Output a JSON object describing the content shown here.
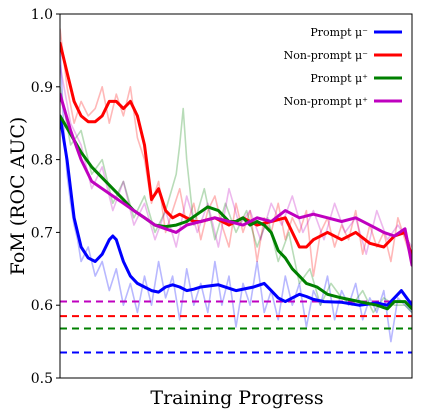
{
  "chart_data": {
    "type": "line",
    "xlabel": "Training Progress",
    "ylabel": "FoM (ROC AUC)",
    "ylim": [
      0.5,
      1.0
    ],
    "yticks": [
      "0.5",
      "0.6",
      "0.7",
      "0.8",
      "0.9",
      "1.0"
    ],
    "xlim": [
      0,
      100
    ],
    "grid": false,
    "legend_position": "top-right",
    "series": [
      {
        "name": "Prompt μ⁻",
        "color": "#0000ff",
        "baseline": 0.535,
        "smooth": {
          "x": [
            0,
            2,
            4,
            6,
            8,
            10,
            12,
            14,
            15,
            16,
            17,
            18,
            20,
            22,
            24,
            26,
            28,
            30,
            32,
            34,
            36,
            38,
            40,
            45,
            50,
            55,
            58,
            60,
            62,
            64,
            66,
            68,
            70,
            72,
            75,
            80,
            85,
            90,
            93,
            95,
            97,
            100
          ],
          "y": [
            0.86,
            0.8,
            0.72,
            0.68,
            0.665,
            0.66,
            0.67,
            0.69,
            0.695,
            0.69,
            0.675,
            0.66,
            0.64,
            0.63,
            0.625,
            0.62,
            0.618,
            0.625,
            0.628,
            0.625,
            0.62,
            0.622,
            0.625,
            0.628,
            0.62,
            0.625,
            0.63,
            0.62,
            0.61,
            0.605,
            0.61,
            0.615,
            0.612,
            0.608,
            0.605,
            0.604,
            0.6,
            0.603,
            0.6,
            0.61,
            0.62,
            0.6
          ]
        },
        "raw": {
          "x": [
            0,
            1,
            2,
            3,
            4,
            5,
            6,
            8,
            10,
            12,
            14,
            16,
            18,
            20,
            22,
            24,
            26,
            28,
            30,
            32,
            34,
            36,
            38,
            40,
            42,
            44,
            46,
            48,
            50,
            52,
            54,
            56,
            58,
            60,
            62,
            64,
            66,
            68,
            70,
            72,
            74,
            76,
            78,
            80,
            82,
            84,
            86,
            88,
            90,
            92,
            94,
            96,
            98,
            100
          ],
          "y": [
            0.96,
            0.85,
            0.78,
            0.74,
            0.71,
            0.69,
            0.66,
            0.68,
            0.64,
            0.66,
            0.62,
            0.65,
            0.6,
            0.63,
            0.59,
            0.64,
            0.6,
            0.66,
            0.61,
            0.64,
            0.58,
            0.65,
            0.6,
            0.63,
            0.59,
            0.66,
            0.6,
            0.64,
            0.57,
            0.63,
            0.6,
            0.66,
            0.59,
            0.62,
            0.58,
            0.64,
            0.6,
            0.63,
            0.57,
            0.62,
            0.6,
            0.64,
            0.58,
            0.62,
            0.6,
            0.63,
            0.58,
            0.61,
            0.59,
            0.62,
            0.55,
            0.61,
            0.6,
            0.59
          ]
        }
      },
      {
        "name": "Non-prompt μ⁻",
        "color": "#ff0000",
        "baseline": 0.585,
        "smooth": {
          "x": [
            0,
            2,
            4,
            6,
            8,
            10,
            12,
            14,
            16,
            18,
            20,
            22,
            24,
            26,
            28,
            30,
            32,
            34,
            36,
            38,
            40,
            44,
            48,
            52,
            56,
            60,
            64,
            68,
            70,
            72,
            76,
            80,
            84,
            88,
            92,
            95,
            98,
            100
          ],
          "y": [
            0.96,
            0.92,
            0.88,
            0.86,
            0.852,
            0.852,
            0.86,
            0.88,
            0.88,
            0.87,
            0.88,
            0.86,
            0.82,
            0.745,
            0.76,
            0.73,
            0.72,
            0.725,
            0.72,
            0.715,
            0.715,
            0.72,
            0.71,
            0.72,
            0.71,
            0.715,
            0.72,
            0.68,
            0.68,
            0.69,
            0.7,
            0.69,
            0.7,
            0.685,
            0.68,
            0.695,
            0.7,
            0.665
          ]
        },
        "raw": {
          "x": [
            0,
            2,
            4,
            6,
            8,
            10,
            12,
            14,
            16,
            18,
            20,
            22,
            24,
            26,
            28,
            30,
            32,
            34,
            36,
            38,
            40,
            42,
            44,
            46,
            48,
            50,
            52,
            54,
            56,
            58,
            60,
            62,
            64,
            66,
            68,
            70,
            72,
            74,
            76,
            78,
            80,
            82,
            84,
            86,
            88,
            90,
            92,
            94,
            96,
            98,
            100
          ],
          "y": [
            0.98,
            0.9,
            0.85,
            0.88,
            0.86,
            0.87,
            0.9,
            0.85,
            0.89,
            0.86,
            0.9,
            0.83,
            0.8,
            0.74,
            0.77,
            0.7,
            0.73,
            0.76,
            0.71,
            0.74,
            0.69,
            0.73,
            0.75,
            0.71,
            0.68,
            0.74,
            0.7,
            0.73,
            0.66,
            0.72,
            0.7,
            0.74,
            0.69,
            0.72,
            0.7,
            0.73,
            0.64,
            0.7,
            0.72,
            0.68,
            0.71,
            0.69,
            0.73,
            0.67,
            0.71,
            0.68,
            0.7,
            0.66,
            0.72,
            0.69,
            0.66
          ]
        }
      },
      {
        "name": "Prompt μ⁺",
        "color": "#008000",
        "baseline": 0.568,
        "smooth": {
          "x": [
            0,
            3,
            6,
            9,
            12,
            15,
            18,
            21,
            24,
            27,
            30,
            33,
            36,
            39,
            42,
            45,
            48,
            50,
            52,
            54,
            56,
            58,
            60,
            62,
            64,
            66,
            68,
            70,
            73,
            76,
            80,
            85,
            90,
            93,
            95,
            98,
            100
          ],
          "y": [
            0.86,
            0.835,
            0.81,
            0.79,
            0.775,
            0.76,
            0.745,
            0.73,
            0.72,
            0.71,
            0.708,
            0.71,
            0.715,
            0.725,
            0.735,
            0.73,
            0.715,
            0.715,
            0.72,
            0.71,
            0.715,
            0.71,
            0.7,
            0.675,
            0.665,
            0.65,
            0.64,
            0.63,
            0.625,
            0.615,
            0.61,
            0.605,
            0.6,
            0.595,
            0.605,
            0.605,
            0.595
          ]
        },
        "raw": {
          "x": [
            0,
            3,
            6,
            9,
            12,
            15,
            18,
            21,
            24,
            27,
            30,
            33,
            34,
            35,
            36,
            38,
            41,
            44,
            47,
            50,
            53,
            56,
            59,
            62,
            65,
            68,
            71,
            74,
            77,
            80,
            83,
            86,
            89,
            92,
            95,
            98,
            100
          ],
          "y": [
            0.9,
            0.82,
            0.84,
            0.78,
            0.8,
            0.74,
            0.77,
            0.72,
            0.75,
            0.7,
            0.73,
            0.78,
            0.82,
            0.87,
            0.8,
            0.71,
            0.76,
            0.69,
            0.74,
            0.7,
            0.73,
            0.68,
            0.72,
            0.66,
            0.7,
            0.63,
            0.65,
            0.6,
            0.63,
            0.61,
            0.6,
            0.62,
            0.59,
            0.61,
            0.6,
            0.6,
            0.59
          ]
        }
      },
      {
        "name": "Non-prompt μ⁺",
        "color": "#bf00bf",
        "baseline": 0.605,
        "smooth": {
          "x": [
            0,
            3,
            6,
            9,
            12,
            15,
            18,
            21,
            24,
            27,
            30,
            33,
            36,
            40,
            44,
            48,
            52,
            56,
            60,
            64,
            68,
            72,
            76,
            80,
            84,
            88,
            92,
            95,
            98,
            100
          ],
          "y": [
            0.89,
            0.84,
            0.8,
            0.77,
            0.76,
            0.75,
            0.74,
            0.73,
            0.72,
            0.71,
            0.705,
            0.7,
            0.71,
            0.715,
            0.72,
            0.715,
            0.71,
            0.72,
            0.715,
            0.73,
            0.72,
            0.725,
            0.72,
            0.715,
            0.72,
            0.71,
            0.7,
            0.695,
            0.705,
            0.655
          ]
        },
        "raw": {
          "x": [
            0,
            3,
            6,
            9,
            12,
            15,
            18,
            21,
            24,
            27,
            30,
            33,
            36,
            39,
            42,
            45,
            48,
            51,
            54,
            57,
            60,
            63,
            66,
            69,
            72,
            75,
            78,
            81,
            84,
            87,
            90,
            93,
            96,
            100
          ],
          "y": [
            0.93,
            0.85,
            0.82,
            0.76,
            0.79,
            0.73,
            0.77,
            0.71,
            0.74,
            0.69,
            0.73,
            0.68,
            0.75,
            0.7,
            0.74,
            0.68,
            0.76,
            0.71,
            0.73,
            0.69,
            0.74,
            0.71,
            0.75,
            0.7,
            0.73,
            0.69,
            0.74,
            0.7,
            0.72,
            0.67,
            0.73,
            0.69,
            0.71,
            0.68
          ]
        }
      }
    ]
  }
}
